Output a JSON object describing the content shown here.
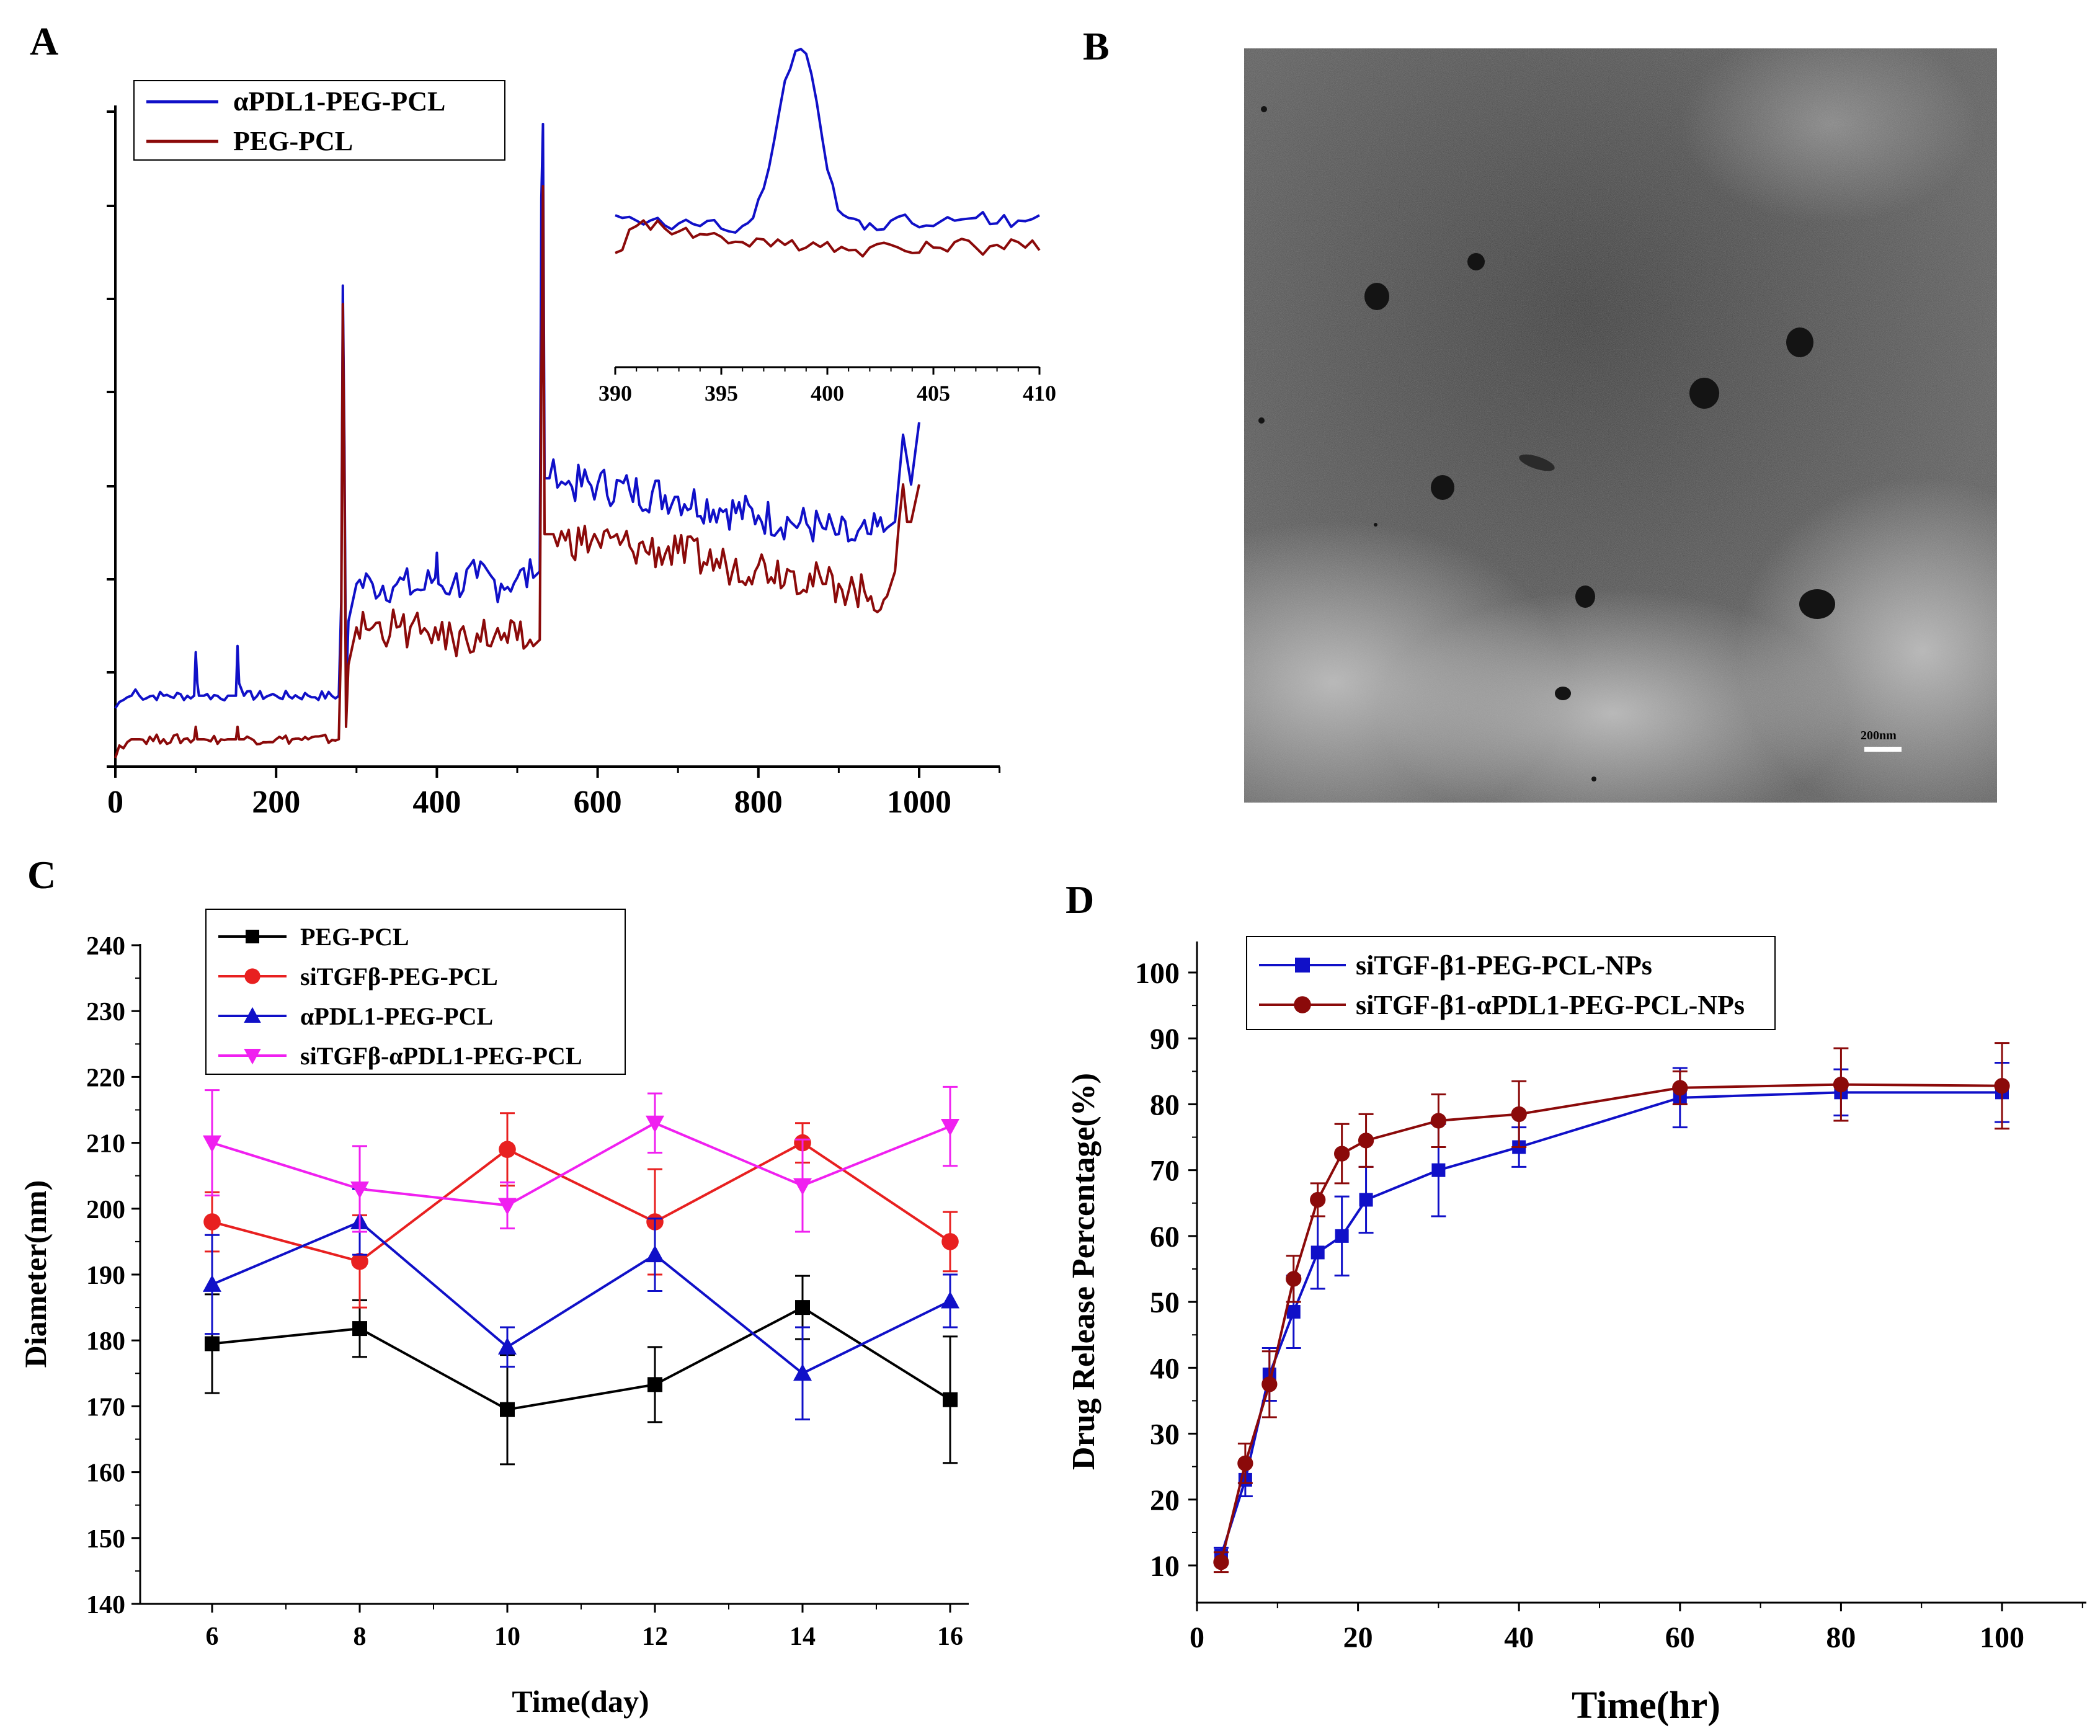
{
  "panels": {
    "a": "A",
    "b": "B",
    "c": "C",
    "d": "D"
  },
  "colors": {
    "blue": "#1010c8",
    "red": "#8b0a0a",
    "black": "#000000",
    "bright_red": "#e82020",
    "magenta": "#f020f0"
  },
  "chart_data": [
    {
      "id": "A",
      "type": "line",
      "title": "",
      "xlabel": "",
      "ylabel": "",
      "xlim": [
        0,
        1100
      ],
      "xticks": [
        "0",
        "200",
        "400",
        "600",
        "800",
        "1000"
      ],
      "ylim": [
        0,
        100
      ],
      "yticks_labeled": false,
      "legend": [
        "αPDL1-PEG-PCL",
        "PEG-PCL"
      ],
      "legend_position": "top-left",
      "series": [
        {
          "name": "αPDL1-PEG-PCL",
          "color": "#1010c8",
          "x": [
            0,
            5,
            20,
            25,
            30,
            60,
            98,
            100,
            102,
            104,
            110,
            140,
            150,
            152,
            154,
            160,
            200,
            240,
            278,
            281,
            283,
            285,
            287,
            290,
            300,
            320,
            350,
            380,
            398,
            400,
            402,
            420,
            450,
            480,
            500,
            520,
            528,
            530,
            532,
            534,
            540,
            545,
            560,
            600,
            640,
            700,
            760,
            800,
            840,
            880,
            900,
            920,
            940,
            960,
            970,
            975,
            980,
            985,
            990,
            1000
          ],
          "y": [
            8,
            9,
            10,
            11,
            10,
            10,
            10,
            17,
            12,
            10,
            10,
            10,
            10,
            18,
            12,
            10,
            10,
            10,
            10,
            25,
            76,
            50,
            10,
            22,
            28,
            28,
            28,
            27,
            29,
            33,
            28,
            28,
            29,
            28,
            29,
            29,
            30,
            90,
            102,
            45,
            45,
            48,
            44,
            44,
            43,
            42,
            40,
            39,
            38,
            37,
            36,
            35,
            36,
            37,
            38,
            45,
            52,
            48,
            44,
            54
          ]
        },
        {
          "name": "PEG-PCL",
          "color": "#8b0a0a",
          "x": [
            0,
            5,
            20,
            25,
            30,
            60,
            98,
            100,
            102,
            104,
            110,
            140,
            150,
            152,
            154,
            160,
            200,
            240,
            278,
            281,
            283,
            285,
            287,
            290,
            300,
            320,
            350,
            380,
            398,
            400,
            402,
            420,
            450,
            480,
            500,
            520,
            528,
            530,
            532,
            534,
            540,
            545,
            560,
            600,
            640,
            700,
            760,
            800,
            840,
            880,
            900,
            920,
            940,
            960,
            970,
            975,
            980,
            985,
            990,
            1000
          ],
          "y": [
            0,
            2,
            3,
            3,
            3,
            3,
            3,
            5,
            3,
            3,
            3,
            3,
            3,
            5,
            3,
            3,
            3,
            3,
            3,
            20,
            73,
            45,
            5,
            15,
            21,
            21,
            21,
            20,
            21,
            20,
            19,
            19,
            20,
            19,
            19,
            18,
            19,
            60,
            92,
            36,
            36,
            36,
            35,
            35,
            34,
            33,
            31,
            31,
            30,
            28,
            28,
            27,
            26,
            26,
            30,
            38,
            44,
            38,
            38,
            44
          ]
        }
      ],
      "inset": {
        "type": "line",
        "xlim": [
          390,
          410
        ],
        "xticks": [
          "390",
          "395",
          "400",
          "405",
          "410"
        ],
        "series": [
          {
            "name": "αPDL1-PEG-PCL",
            "color": "#1010c8",
            "x": [
              390,
              391,
              392,
              393,
              394,
              395,
              396,
              396.5,
              397,
              397.5,
              398,
              398.5,
              399,
              399.5,
              400,
              400.5,
              401,
              401.5,
              402,
              403,
              404,
              405,
              406,
              407,
              408,
              409,
              410
            ],
            "y": [
              38,
              36,
              37,
              35,
              34,
              33,
              34,
              37,
              48,
              66,
              88,
              99,
              98,
              80,
              55,
              40,
              37,
              36,
              35,
              36,
              35,
              34,
              36,
              37,
              35,
              36,
              38
            ]
          },
          {
            "name": "PEG-PCL",
            "color": "#8b0a0a",
            "x": [
              390,
              391,
              392,
              393,
              394,
              395,
              396,
              397,
              398,
              399,
              400,
              401,
              402,
              403,
              404,
              405,
              406,
              407,
              408,
              409,
              410
            ],
            "y": [
              24,
              34,
              36,
              32,
              31,
              30,
              28,
              29,
              27,
              26,
              28,
              25,
              26,
              27,
              24,
              26,
              28,
              26,
              27,
              28,
              25
            ]
          }
        ]
      }
    },
    {
      "id": "C",
      "type": "line",
      "title": "",
      "xlabel": "Time(day)",
      "ylabel": "Diameter(nm)",
      "xlim": [
        5,
        16.3
      ],
      "xticks": [
        "6",
        "8",
        "10",
        "12",
        "14",
        "16"
      ],
      "ylim": [
        140,
        240
      ],
      "yticks": [
        "140",
        "150",
        "160",
        "170",
        "180",
        "190",
        "200",
        "210",
        "220",
        "230",
        "240"
      ],
      "legend_position": "top-left",
      "x": [
        6,
        8,
        10,
        12,
        14,
        16
      ],
      "series": [
        {
          "name": "PEG-PCL",
          "color": "#000000",
          "marker": "square",
          "values": [
            179.5,
            181.8,
            169.5,
            173.3,
            185,
            171
          ],
          "errors": [
            7.5,
            4.3,
            8.3,
            5.7,
            4.8,
            9.6
          ]
        },
        {
          "name": "siTGFβ-PEG-PCL",
          "color": "#e82020",
          "marker": "circle",
          "values": [
            198,
            192,
            209,
            198,
            210,
            195
          ],
          "errors": [
            4.5,
            7,
            5.5,
            8,
            3,
            4.5
          ]
        },
        {
          "name": "αPDL1-PEG-PCL",
          "color": "#1010c8",
          "marker": "triangle-up",
          "values": [
            188.5,
            198,
            179,
            193,
            175,
            186
          ],
          "errors": [
            7.5,
            5,
            3,
            5.5,
            7,
            4
          ]
        },
        {
          "name": "siTGFβ-αPDL1-PEG-PCL",
          "color": "#f020f0",
          "marker": "triangle-down",
          "values": [
            210,
            203,
            200.5,
            213,
            203.5,
            212.5
          ],
          "errors": [
            8,
            6.5,
            3.5,
            4.5,
            7,
            6
          ]
        }
      ]
    },
    {
      "id": "D",
      "type": "line",
      "title": "",
      "xlabel": "Time(hr)",
      "ylabel": "Drug Release Percentage(%)",
      "xlim": [
        0,
        110
      ],
      "xticks": [
        "0",
        "20",
        "40",
        "60",
        "80",
        "100"
      ],
      "ylim": [
        5,
        105
      ],
      "yticks": [
        "10",
        "20",
        "30",
        "40",
        "50",
        "60",
        "70",
        "80",
        "90",
        "100"
      ],
      "legend_position": "top-left",
      "series": [
        {
          "name": "siTGF-β1-PEG-PCL-NPs",
          "color": "#1010c8",
          "marker": "square",
          "x": [
            3,
            6,
            9,
            12,
            15,
            18,
            21,
            30,
            40,
            60,
            80,
            100
          ],
          "values": [
            11.5,
            23,
            39,
            48.5,
            57.5,
            60,
            65.5,
            70,
            73.5,
            81,
            81.8,
            81.8
          ],
          "errors": [
            1.2,
            2.5,
            4,
            5.5,
            5.5,
            6,
            5,
            7,
            3,
            4.5,
            3.5,
            4.5
          ]
        },
        {
          "name": "siTGF-β1-αPDL1-PEG-PCL-NPs",
          "color": "#8b0a0a",
          "marker": "circle",
          "x": [
            3,
            6,
            9,
            12,
            15,
            18,
            21,
            30,
            40,
            60,
            80,
            100
          ],
          "values": [
            10.5,
            25.5,
            37.5,
            53.5,
            65.5,
            72.5,
            74.5,
            77.5,
            78.5,
            82.5,
            83,
            82.8
          ],
          "errors": [
            1.5,
            3,
            5,
            3.5,
            2.5,
            4.5,
            4,
            4,
            5,
            2.5,
            5.5,
            6.5
          ]
        }
      ]
    }
  ]
}
